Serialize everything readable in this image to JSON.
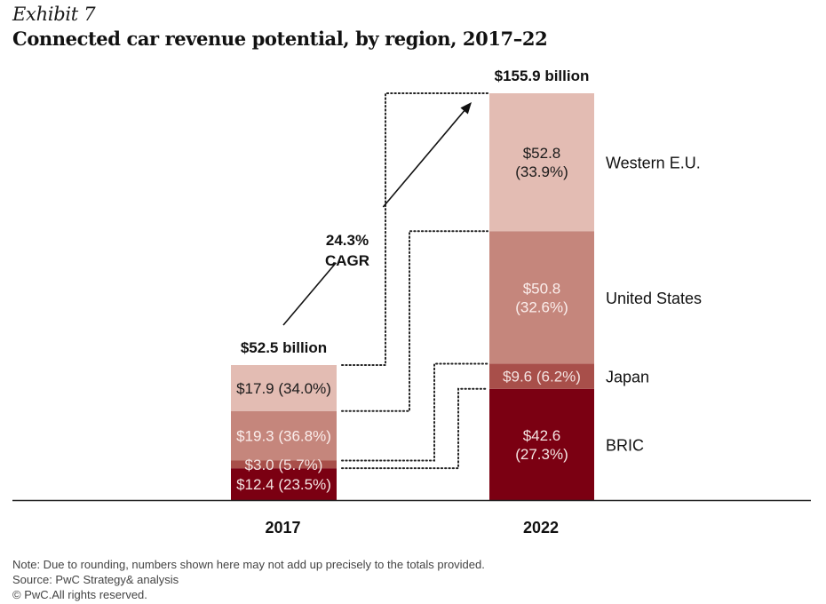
{
  "header": {
    "exhibit": "Exhibit 7",
    "title": "Connected car revenue potential, by region, 2017–22"
  },
  "chart_data": {
    "type": "bar",
    "stacked": true,
    "title": "Connected car revenue potential, by region, 2017–22",
    "xlabel": "",
    "ylabel": "",
    "unit": "$ billion",
    "categories": [
      "2017",
      "2022"
    ],
    "totals": [
      52.5,
      155.9
    ],
    "total_labels": [
      "$52.5 billion",
      "$155.9 billion"
    ],
    "series": [
      {
        "name": "BRIC",
        "color": "#7b0012",
        "values": [
          12.4,
          42.6
        ],
        "shares": [
          23.5,
          27.3
        ],
        "labels": [
          "$12.4 (23.5%)",
          "$42.6|(27.3%)"
        ],
        "label_color": "#f4e4e2"
      },
      {
        "name": "Japan",
        "color": "#a84f4a",
        "values": [
          3.0,
          9.6
        ],
        "shares": [
          5.7,
          6.2
        ],
        "labels": [
          "$3.0 (5.7%)",
          "$9.6 (6.2%)"
        ],
        "label_color": "#f4e4e2"
      },
      {
        "name": "United States",
        "color": "#c5867c",
        "values": [
          19.3,
          50.8
        ],
        "shares": [
          36.8,
          32.6
        ],
        "labels": [
          "$19.3 (36.8%)",
          "$50.8|(32.6%)"
        ],
        "label_color": "#fbeeec"
      },
      {
        "name": "Western E.U.",
        "color": "#e3bcb3",
        "values": [
          17.9,
          52.8
        ],
        "shares": [
          34.0,
          33.9
        ],
        "labels": [
          "$17.9 (34.0%)",
          "$52.8|(33.9%)"
        ],
        "label_color": "#1a1a1a"
      }
    ],
    "legend": {
      "placement": "right-of-last-bar",
      "entries": [
        "Western E.U.",
        "United States",
        "Japan",
        "BRIC"
      ]
    },
    "annotations": [
      {
        "type": "arrow",
        "text_lines": [
          "24.3%",
          "CAGR"
        ],
        "meaning": "Compound annual growth rate 2017 to 2022"
      },
      {
        "type": "dotted-connectors",
        "meaning": "Link each region segment in 2017 to the same region in 2022"
      }
    ],
    "grid": false
  },
  "footer": {
    "note": "Note: Due to rounding, numbers shown here may not add up precisely to the totals provided.",
    "source": "Source: PwC Strategy& analysis",
    "copyright": "© PwC.All rights reserved."
  }
}
